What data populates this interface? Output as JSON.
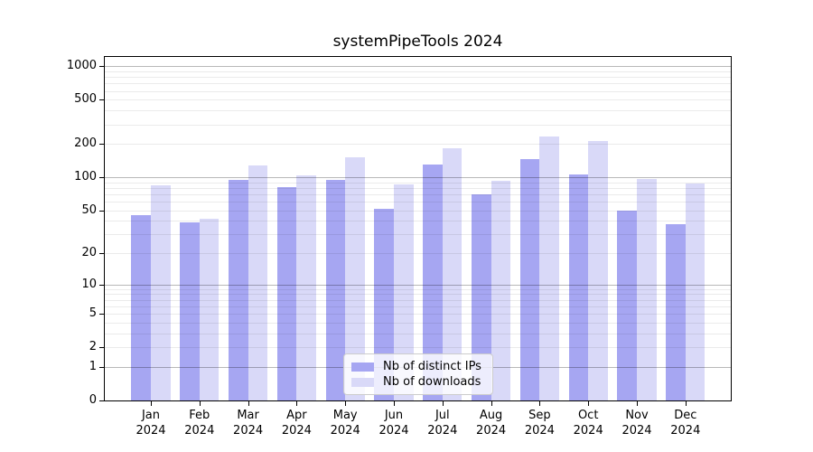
{
  "title": "systemPipeTools 2024",
  "chart_data": {
    "type": "bar",
    "title": "systemPipeTools 2024",
    "categories": [
      "Jan",
      "Feb",
      "Mar",
      "Apr",
      "May",
      "Jun",
      "Jul",
      "Aug",
      "Sep",
      "Oct",
      "Nov",
      "Dec"
    ],
    "category_year": "2024",
    "series": [
      {
        "name": "Nb of distinct IPs",
        "color": "#a6a6f2",
        "values": [
          45,
          39,
          95,
          81,
          94,
          52,
          131,
          70,
          146,
          105,
          50,
          37
        ]
      },
      {
        "name": "Nb of downloads",
        "color": "#d9d9f8",
        "values": [
          84,
          42,
          127,
          104,
          151,
          86,
          183,
          93,
          232,
          214,
          97,
          88
        ]
      }
    ],
    "yscale": "log1p",
    "ylim": [
      0,
      1200
    ],
    "yticks": [
      0,
      1,
      2,
      5,
      10,
      20,
      50,
      100,
      200,
      500,
      1000
    ],
    "grid": true,
    "grid_major_at": [
      1,
      10,
      100,
      1000
    ],
    "legend_position": "bottom-center",
    "xlabel": "",
    "ylabel": ""
  }
}
